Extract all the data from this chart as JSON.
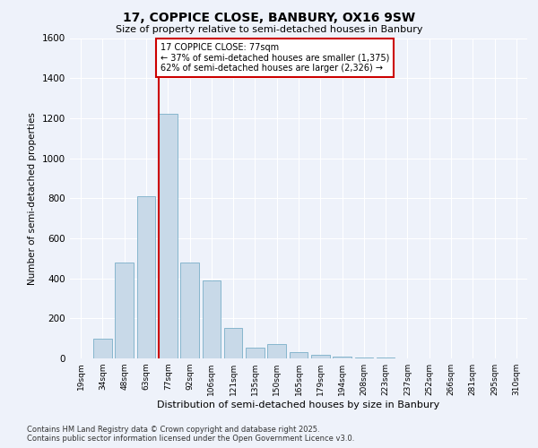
{
  "title": "17, COPPICE CLOSE, BANBURY, OX16 9SW",
  "subtitle": "Size of property relative to semi-detached houses in Banbury",
  "xlabel": "Distribution of semi-detached houses by size in Banbury",
  "ylabel": "Number of semi-detached properties",
  "categories": [
    "19sqm",
    "34sqm",
    "48sqm",
    "63sqm",
    "77sqm",
    "92sqm",
    "106sqm",
    "121sqm",
    "135sqm",
    "150sqm",
    "165sqm",
    "179sqm",
    "194sqm",
    "208sqm",
    "223sqm",
    "237sqm",
    "252sqm",
    "266sqm",
    "281sqm",
    "295sqm",
    "310sqm"
  ],
  "values": [
    0,
    100,
    480,
    810,
    1220,
    480,
    390,
    150,
    55,
    70,
    30,
    20,
    10,
    5,
    5,
    0,
    0,
    0,
    0,
    0,
    0
  ],
  "bar_color": "#c8d9e8",
  "bar_edge_color": "#7aafc8",
  "line_x_index": 4,
  "line_color": "#cc0000",
  "annotation_text": "17 COPPICE CLOSE: 77sqm\n← 37% of semi-detached houses are smaller (1,375)\n62% of semi-detached houses are larger (2,326) →",
  "annotation_box_color": "#cc0000",
  "ylim": [
    0,
    1600
  ],
  "yticks": [
    0,
    200,
    400,
    600,
    800,
    1000,
    1200,
    1400,
    1600
  ],
  "footer_line1": "Contains HM Land Registry data © Crown copyright and database right 2025.",
  "footer_line2": "Contains public sector information licensed under the Open Government Licence v3.0.",
  "bg_color": "#eef2fa",
  "plot_bg_color": "#eef2fa",
  "title_fontsize": 10,
  "subtitle_fontsize": 8,
  "xlabel_fontsize": 8,
  "ylabel_fontsize": 7.5,
  "ytick_fontsize": 7.5,
  "xtick_fontsize": 6.5,
  "footer_fontsize": 6.0,
  "annot_fontsize": 7.0
}
